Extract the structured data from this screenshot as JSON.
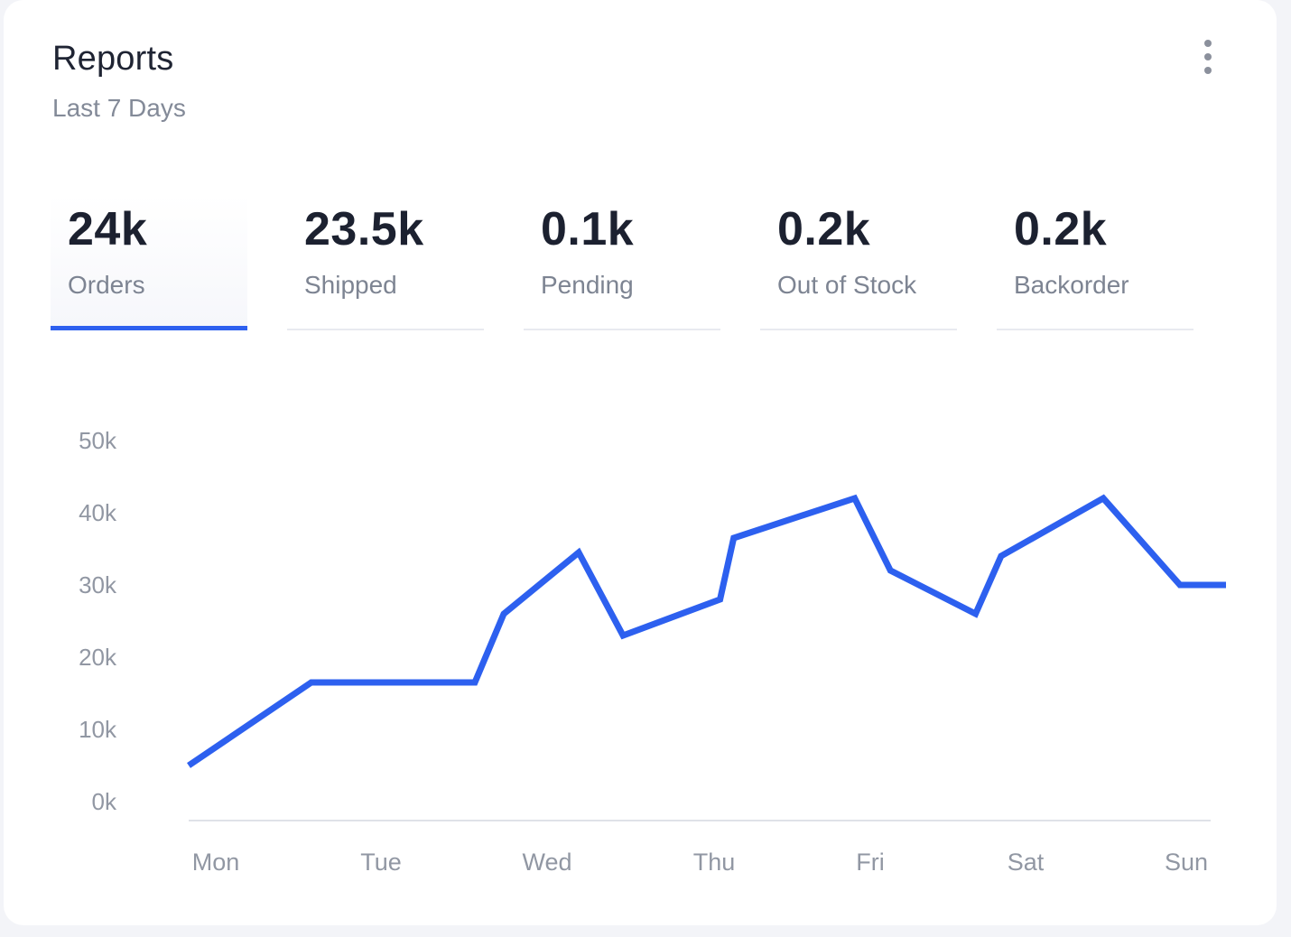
{
  "header": {
    "title": "Reports",
    "subtitle": "Last 7 Days",
    "menu_icon": "more-vertical-icon"
  },
  "tabs": [
    {
      "value": "24k",
      "label": "Orders",
      "active": true
    },
    {
      "value": "23.5k",
      "label": "Shipped",
      "active": false
    },
    {
      "value": "0.1k",
      "label": "Pending",
      "active": false
    },
    {
      "value": "0.2k",
      "label": "Out of Stock",
      "active": false
    },
    {
      "value": "0.2k",
      "label": "Backorder",
      "active": false
    }
  ],
  "colors": {
    "accent": "#2d60ef",
    "text": "#1c2130",
    "muted": "#7d8492"
  },
  "chart_data": {
    "type": "line",
    "categories": [
      "Mon",
      "Tue",
      "Wed",
      "Thu",
      "Fri",
      "Sat",
      "Sun"
    ],
    "y_ticks": [
      "0k",
      "10k",
      "20k",
      "30k",
      "40k",
      "50k"
    ],
    "ylim": [
      0,
      50000
    ],
    "grid": false,
    "series": [
      {
        "x": [
          0,
          0.72,
          1.68,
          1.85,
          2.29,
          2.55,
          3.12,
          3.2,
          3.91,
          4.12,
          4.62,
          4.77,
          5.37,
          5.82,
          6.09
        ],
        "values": [
          5000,
          16500,
          16500,
          26000,
          34500,
          23000,
          28000,
          36500,
          42000,
          32000,
          26000,
          34000,
          42000,
          30000,
          30000
        ]
      }
    ],
    "color": "#2d60ef"
  }
}
